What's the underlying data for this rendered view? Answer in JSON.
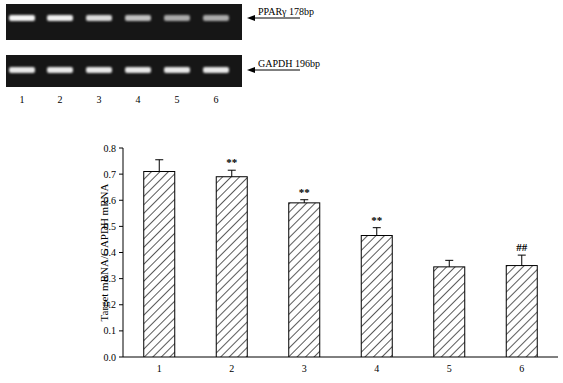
{
  "chart_data": {
    "type": "bar",
    "y_label": "Target mRNA/GAPDH mRNA",
    "categories": [
      "1",
      "2",
      "3",
      "4",
      "5",
      "6"
    ],
    "values": [
      0.71,
      0.69,
      0.59,
      0.465,
      0.345,
      0.35
    ],
    "errors": [
      0.045,
      0.025,
      0.012,
      0.03,
      0.025,
      0.04
    ],
    "annotations": [
      null,
      "**",
      "**",
      "**",
      null,
      "##"
    ],
    "color": "#000000",
    "ylim": [
      0,
      0.8
    ],
    "yticks": [
      {
        "value": 0,
        "label": "0.0"
      },
      0.1,
      0.2,
      0.3,
      0.4,
      0.5,
      0.6,
      0.7,
      0.8
    ],
    "grid": false
  },
  "gel": {
    "lanes": [
      "1",
      "2",
      "3",
      "4",
      "5",
      "6"
    ],
    "bands": [
      {
        "label": "PPARγ 178bp"
      },
      {
        "label": "GAPDH 196bp"
      }
    ]
  }
}
